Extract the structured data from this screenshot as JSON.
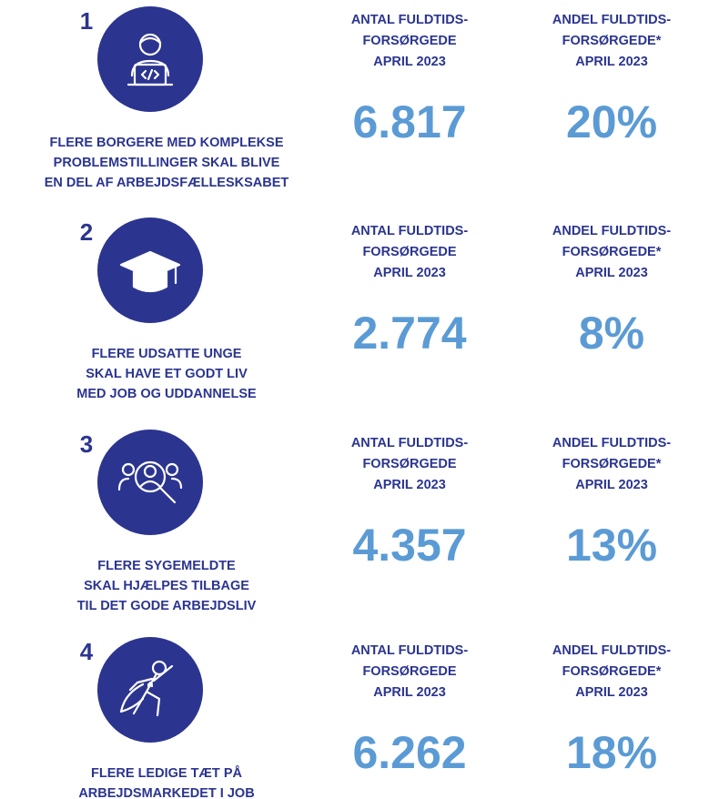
{
  "items": [
    {
      "number": "1",
      "goal": [
        "FLERE BORGERE MED KOMPLEKSE",
        "PROBLEMSTILLINGER SKAL BLIVE",
        "EN DEL AF ARBEJDSFÆLLESKSABET"
      ],
      "count_label": [
        "ANTAL FULDTIDS-",
        "FORSØRGEDE",
        "APRIL 2023"
      ],
      "count": "6.817",
      "share_label": [
        "ANDEL FULDTIDS-",
        "FORSØRGEDE*",
        "APRIL 2023"
      ],
      "share": "20%"
    },
    {
      "number": "2",
      "goal": [
        "FLERE UDSATTE UNGE",
        "SKAL HAVE ET GODT LIV",
        "MED JOB OG UDDANNELSE"
      ],
      "count_label": [
        "ANTAL FULDTIDS-",
        "FORSØRGEDE",
        "APRIL 2023"
      ],
      "count": "2.774",
      "share_label": [
        "ANDEL FULDTIDS-",
        "FORSØRGEDE*",
        "APRIL 2023"
      ],
      "share": "8%"
    },
    {
      "number": "3",
      "goal": [
        "FLERE SYGEMELDTE",
        "SKAL HJÆLPES TILBAGE",
        "TIL DET GODE ARBEJDSLIV"
      ],
      "count_label": [
        "ANTAL FULDTIDS-",
        "FORSØRGEDE",
        "APRIL 2023"
      ],
      "count": "4.357",
      "share_label": [
        "ANDEL FULDTIDS-",
        "FORSØRGEDE*",
        "APRIL 2023"
      ],
      "share": "13%"
    },
    {
      "number": "4",
      "goal": [
        "FLERE LEDIGE TÆT PÅ",
        "ARBEJDSMARKEDET I JOB"
      ],
      "count_label": [
        "ANTAL FULDTIDS-",
        "FORSØRGEDE",
        "APRIL 2023"
      ],
      "count": "6.262",
      "share_label": [
        "ANDEL FULDTIDS-",
        "FORSØRGEDE*",
        "APRIL 2023"
      ],
      "share": "18%"
    }
  ]
}
